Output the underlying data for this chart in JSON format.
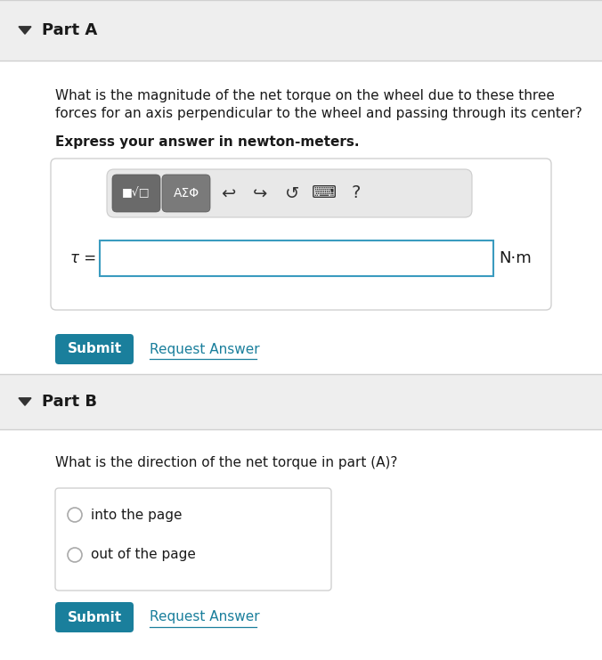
{
  "bg_color": "#f5f5f5",
  "white": "#ffffff",
  "header_bg": "#eeeeee",
  "content_bg": "#ffffff",
  "teal": "#1a7f9c",
  "blue_border": "#3a9bbf",
  "text_dark": "#1a1a1a",
  "link_color": "#1a7f9c",
  "btn_dark1": "#6a6a6a",
  "btn_dark2": "#7a7a7a",
  "toolbar_bg": "#e8e8e8",
  "radio_border": "#aaaaaa",
  "part_a_label": "Part A",
  "part_b_label": "Part B",
  "part_a_q1": "What is the magnitude of the net torque on the wheel due to these three",
  "part_a_q2": "forces for an axis perpendicular to the wheel and passing through its center?",
  "part_a_bold": "Express your answer in newton-meters.",
  "tau_label": "τ =",
  "nm_label": "N·m",
  "submit_text": "Submit",
  "request_text": "Request Answer",
  "part_b_question": "What is the direction of the net torque in part (A)?",
  "radio_option1": "into the page",
  "radio_option2": "out of the page",
  "sep_color": "#d0d0d0",
  "fig_width": 6.76,
  "fig_height": 7.41,
  "dpi": 100
}
